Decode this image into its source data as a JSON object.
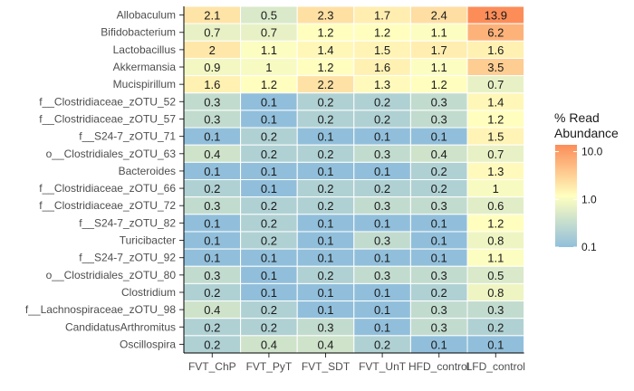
{
  "chart_data": {
    "type": "heatmap",
    "title": "",
    "xlabel": "",
    "ylabel": "",
    "columns": [
      "FVT_ChP",
      "FVT_PyT",
      "FVT_SDT",
      "FVT_UnT",
      "HFD_control",
      "LFD_control"
    ],
    "rows": [
      "Allobaculum",
      "Bifidobacterium",
      "Lactobacillus",
      "Akkermansia",
      "Mucispirillum",
      "f__Clostridiaceae_zOTU_52",
      "f__Clostridiaceae_zOTU_57",
      "f__S24-7_zOTU_71",
      "o__Clostridiales_zOTU_63",
      "Bacteroides",
      "f__Clostridiaceae_zOTU_66",
      "f__Clostridiaceae_zOTU_72",
      "f__S24-7_zOTU_82",
      "Turicibacter",
      "f__S24-7_zOTU_92",
      "o__Clostridiales_zOTU_80",
      "Clostridium",
      "f__Lachnospiraceae_zOTU_98",
      "CandidatusArthromitus",
      "Oscillospira"
    ],
    "values": [
      [
        "2.1",
        "0.5",
        "2.3",
        "1.7",
        "2.4",
        "13.9"
      ],
      [
        "0.7",
        "0.7",
        "1.2",
        "1.2",
        "1.1",
        "6.2"
      ],
      [
        "2",
        "1.1",
        "1.4",
        "1.5",
        "1.7",
        "1.6"
      ],
      [
        "0.9",
        "1",
        "1.2",
        "1.6",
        "1.1",
        "3.5"
      ],
      [
        "1.6",
        "1.2",
        "2.2",
        "1.3",
        "1.2",
        "0.7"
      ],
      [
        "0.3",
        "0.1",
        "0.2",
        "0.2",
        "0.3",
        "1.4"
      ],
      [
        "0.3",
        "0.1",
        "0.2",
        "0.2",
        "0.3",
        "1.2"
      ],
      [
        "0.1",
        "0.2",
        "0.1",
        "0.1",
        "0.1",
        "1.5"
      ],
      [
        "0.4",
        "0.2",
        "0.2",
        "0.3",
        "0.4",
        "0.7"
      ],
      [
        "0.1",
        "0.1",
        "0.1",
        "0.1",
        "0.2",
        "1.3"
      ],
      [
        "0.2",
        "0.1",
        "0.2",
        "0.2",
        "0.2",
        "1"
      ],
      [
        "0.3",
        "0.2",
        "0.2",
        "0.3",
        "0.3",
        "0.6"
      ],
      [
        "0.1",
        "0.2",
        "0.1",
        "0.1",
        "0.1",
        "1.2"
      ],
      [
        "0.1",
        "0.2",
        "0.1",
        "0.3",
        "0.1",
        "0.8"
      ],
      [
        "0.1",
        "0.1",
        "0.1",
        "0.1",
        "0.1",
        "1.1"
      ],
      [
        "0.3",
        "0.1",
        "0.2",
        "0.3",
        "0.3",
        "0.5"
      ],
      [
        "0.2",
        "0.1",
        "0.1",
        "0.1",
        "0.2",
        "0.8"
      ],
      [
        "0.4",
        "0.2",
        "0.1",
        "0.1",
        "0.3",
        "0.3"
      ],
      [
        "0.2",
        "0.2",
        "0.3",
        "0.1",
        "0.3",
        "0.2"
      ],
      [
        "0.2",
        "0.4",
        "0.4",
        "0.2",
        "0.1",
        "0.1"
      ]
    ],
    "color_scale": {
      "type": "log",
      "min": 0.1,
      "max": 13.9,
      "low_color": "#91bfdb",
      "mid_color": "#ffffbf",
      "high_color": "#fc8d59"
    },
    "legend": {
      "title_line1": "% Read",
      "title_line2": "Abundance",
      "ticks": [
        "10.0",
        "1.0",
        "0.1"
      ],
      "tick_values": [
        10,
        1,
        0.1
      ],
      "placement": "right"
    },
    "grid": false
  }
}
